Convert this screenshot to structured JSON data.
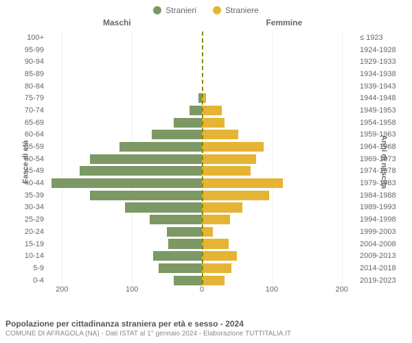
{
  "legend": {
    "male": {
      "label": "Stranieri",
      "color": "#7c9965"
    },
    "female": {
      "label": "Straniere",
      "color": "#e6b434"
    }
  },
  "col_headers": {
    "left": "Maschi",
    "right": "Femmine"
  },
  "axis_titles": {
    "left": "Fasce di età",
    "right": "Anni di nascita"
  },
  "chart": {
    "type": "population-pyramid",
    "x_max": 220,
    "x_ticks": [
      200,
      100,
      0,
      100,
      200
    ],
    "male_color": "#7c9965",
    "female_color": "#e6b434",
    "grid_color": "#eeeeee",
    "center_line_color": "#8a8a00",
    "background_color": "#ffffff",
    "label_fontsize": 11,
    "rows": [
      {
        "age": "100+",
        "year": "≤ 1923",
        "m": 0,
        "f": 0
      },
      {
        "age": "95-99",
        "year": "1924-1928",
        "m": 0,
        "f": 0
      },
      {
        "age": "90-94",
        "year": "1929-1933",
        "m": 0,
        "f": 0
      },
      {
        "age": "85-89",
        "year": "1934-1938",
        "m": 0,
        "f": 0
      },
      {
        "age": "80-84",
        "year": "1939-1943",
        "m": 0,
        "f": 0
      },
      {
        "age": "75-79",
        "year": "1944-1948",
        "m": 5,
        "f": 6
      },
      {
        "age": "70-74",
        "year": "1949-1953",
        "m": 18,
        "f": 28
      },
      {
        "age": "65-69",
        "year": "1954-1958",
        "m": 40,
        "f": 32
      },
      {
        "age": "60-64",
        "year": "1959-1963",
        "m": 72,
        "f": 52
      },
      {
        "age": "55-59",
        "year": "1964-1968",
        "m": 118,
        "f": 88
      },
      {
        "age": "50-54",
        "year": "1969-1973",
        "m": 160,
        "f": 78
      },
      {
        "age": "45-49",
        "year": "1974-1978",
        "m": 175,
        "f": 70
      },
      {
        "age": "40-44",
        "year": "1979-1983",
        "m": 215,
        "f": 116
      },
      {
        "age": "35-39",
        "year": "1984-1988",
        "m": 160,
        "f": 96
      },
      {
        "age": "30-34",
        "year": "1989-1993",
        "m": 110,
        "f": 58
      },
      {
        "age": "25-29",
        "year": "1994-1998",
        "m": 75,
        "f": 40
      },
      {
        "age": "20-24",
        "year": "1999-2003",
        "m": 50,
        "f": 16
      },
      {
        "age": "15-19",
        "year": "2004-2008",
        "m": 48,
        "f": 38
      },
      {
        "age": "10-14",
        "year": "2009-2013",
        "m": 70,
        "f": 50
      },
      {
        "age": "5-9",
        "year": "2014-2018",
        "m": 62,
        "f": 42
      },
      {
        "age": "0-4",
        "year": "2019-2023",
        "m": 40,
        "f": 32
      }
    ]
  },
  "footer": {
    "title": "Popolazione per cittadinanza straniera per età e sesso - 2024",
    "sub": "COMUNE DI AFRAGOLA (NA) - Dati ISTAT al 1° gennaio 2024 - Elaborazione TUTTITALIA.IT"
  }
}
